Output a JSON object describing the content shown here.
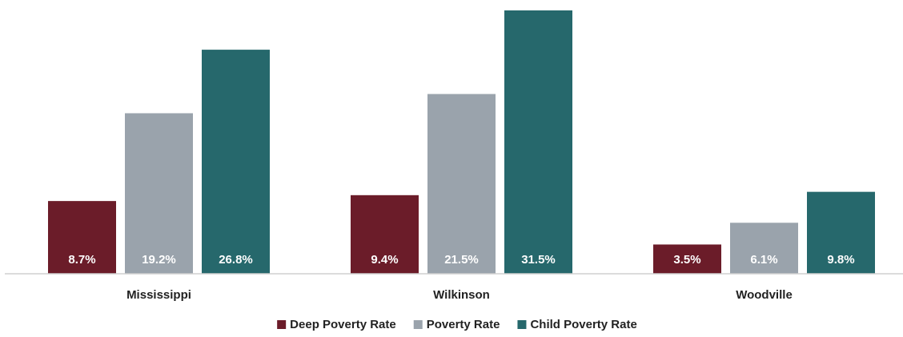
{
  "chart_data": {
    "type": "bar",
    "title": "",
    "xlabel": "",
    "ylabel": "",
    "categories": [
      "Mississippi",
      "Wilkinson",
      "Woodville"
    ],
    "series": [
      {
        "name": "Deep Poverty Rate",
        "values": [
          8.7,
          9.4,
          3.5
        ],
        "labels": [
          "8.7%",
          "9.4%",
          "3.5%"
        ],
        "color": "#6b1c29"
      },
      {
        "name": "Poverty Rate",
        "values": [
          19.2,
          21.5,
          6.1
        ],
        "labels": [
          "19.2%",
          "21.5%",
          "6.1%"
        ],
        "color": "#9aa3ac"
      },
      {
        "name": "Child Poverty Rate",
        "values": [
          26.8,
          31.5,
          9.8
        ],
        "labels": [
          "26.8%",
          "31.5%",
          "9.8%"
        ],
        "color": "#26686c"
      }
    ],
    "ylim": [
      0,
      31.5
    ],
    "grid": false,
    "legend_position": "bottom"
  }
}
